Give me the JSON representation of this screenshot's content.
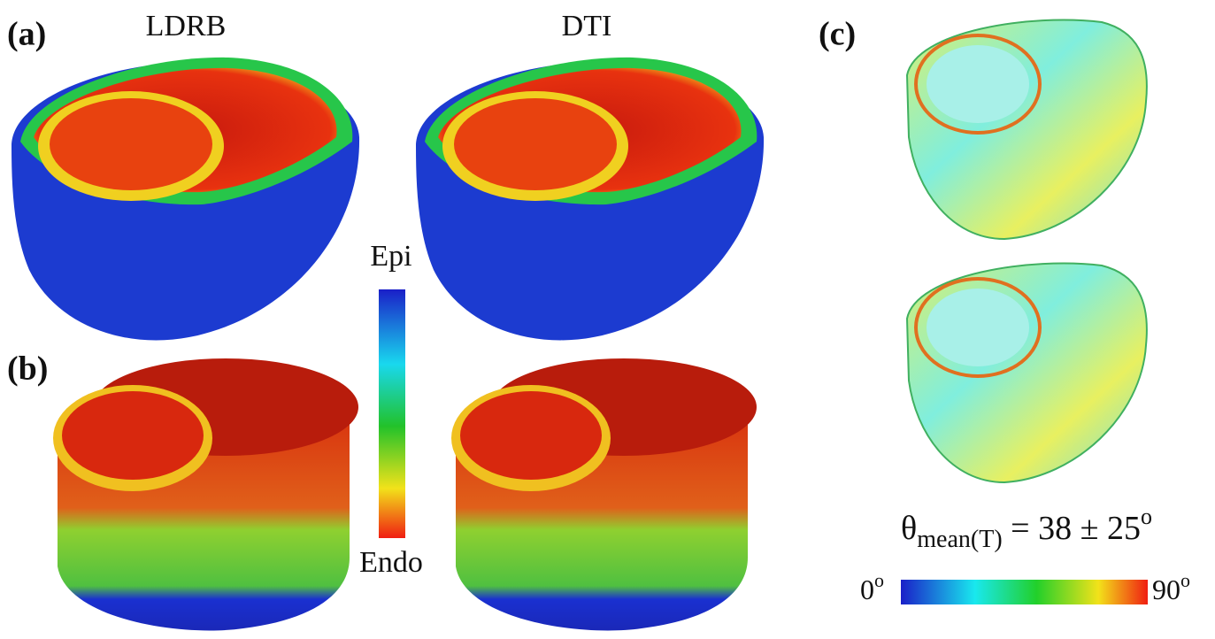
{
  "panel_a": {
    "label": "(a)",
    "columns": [
      "LDRB",
      "DTI"
    ]
  },
  "panel_b": {
    "label": "(b)"
  },
  "fiber_colorbar": {
    "top_label": "Epi",
    "bottom_label": "Endo"
  },
  "panel_c": {
    "label": "(c)",
    "equation": {
      "symbol": "θ",
      "subscript": "mean",
      "argument": "(T)",
      "relation": " = 38 ± 25",
      "superscript": "o"
    },
    "colorbar": {
      "min": {
        "text": "0",
        "superscript": "o"
      },
      "max": {
        "text": "90",
        "superscript": "o"
      }
    }
  }
}
